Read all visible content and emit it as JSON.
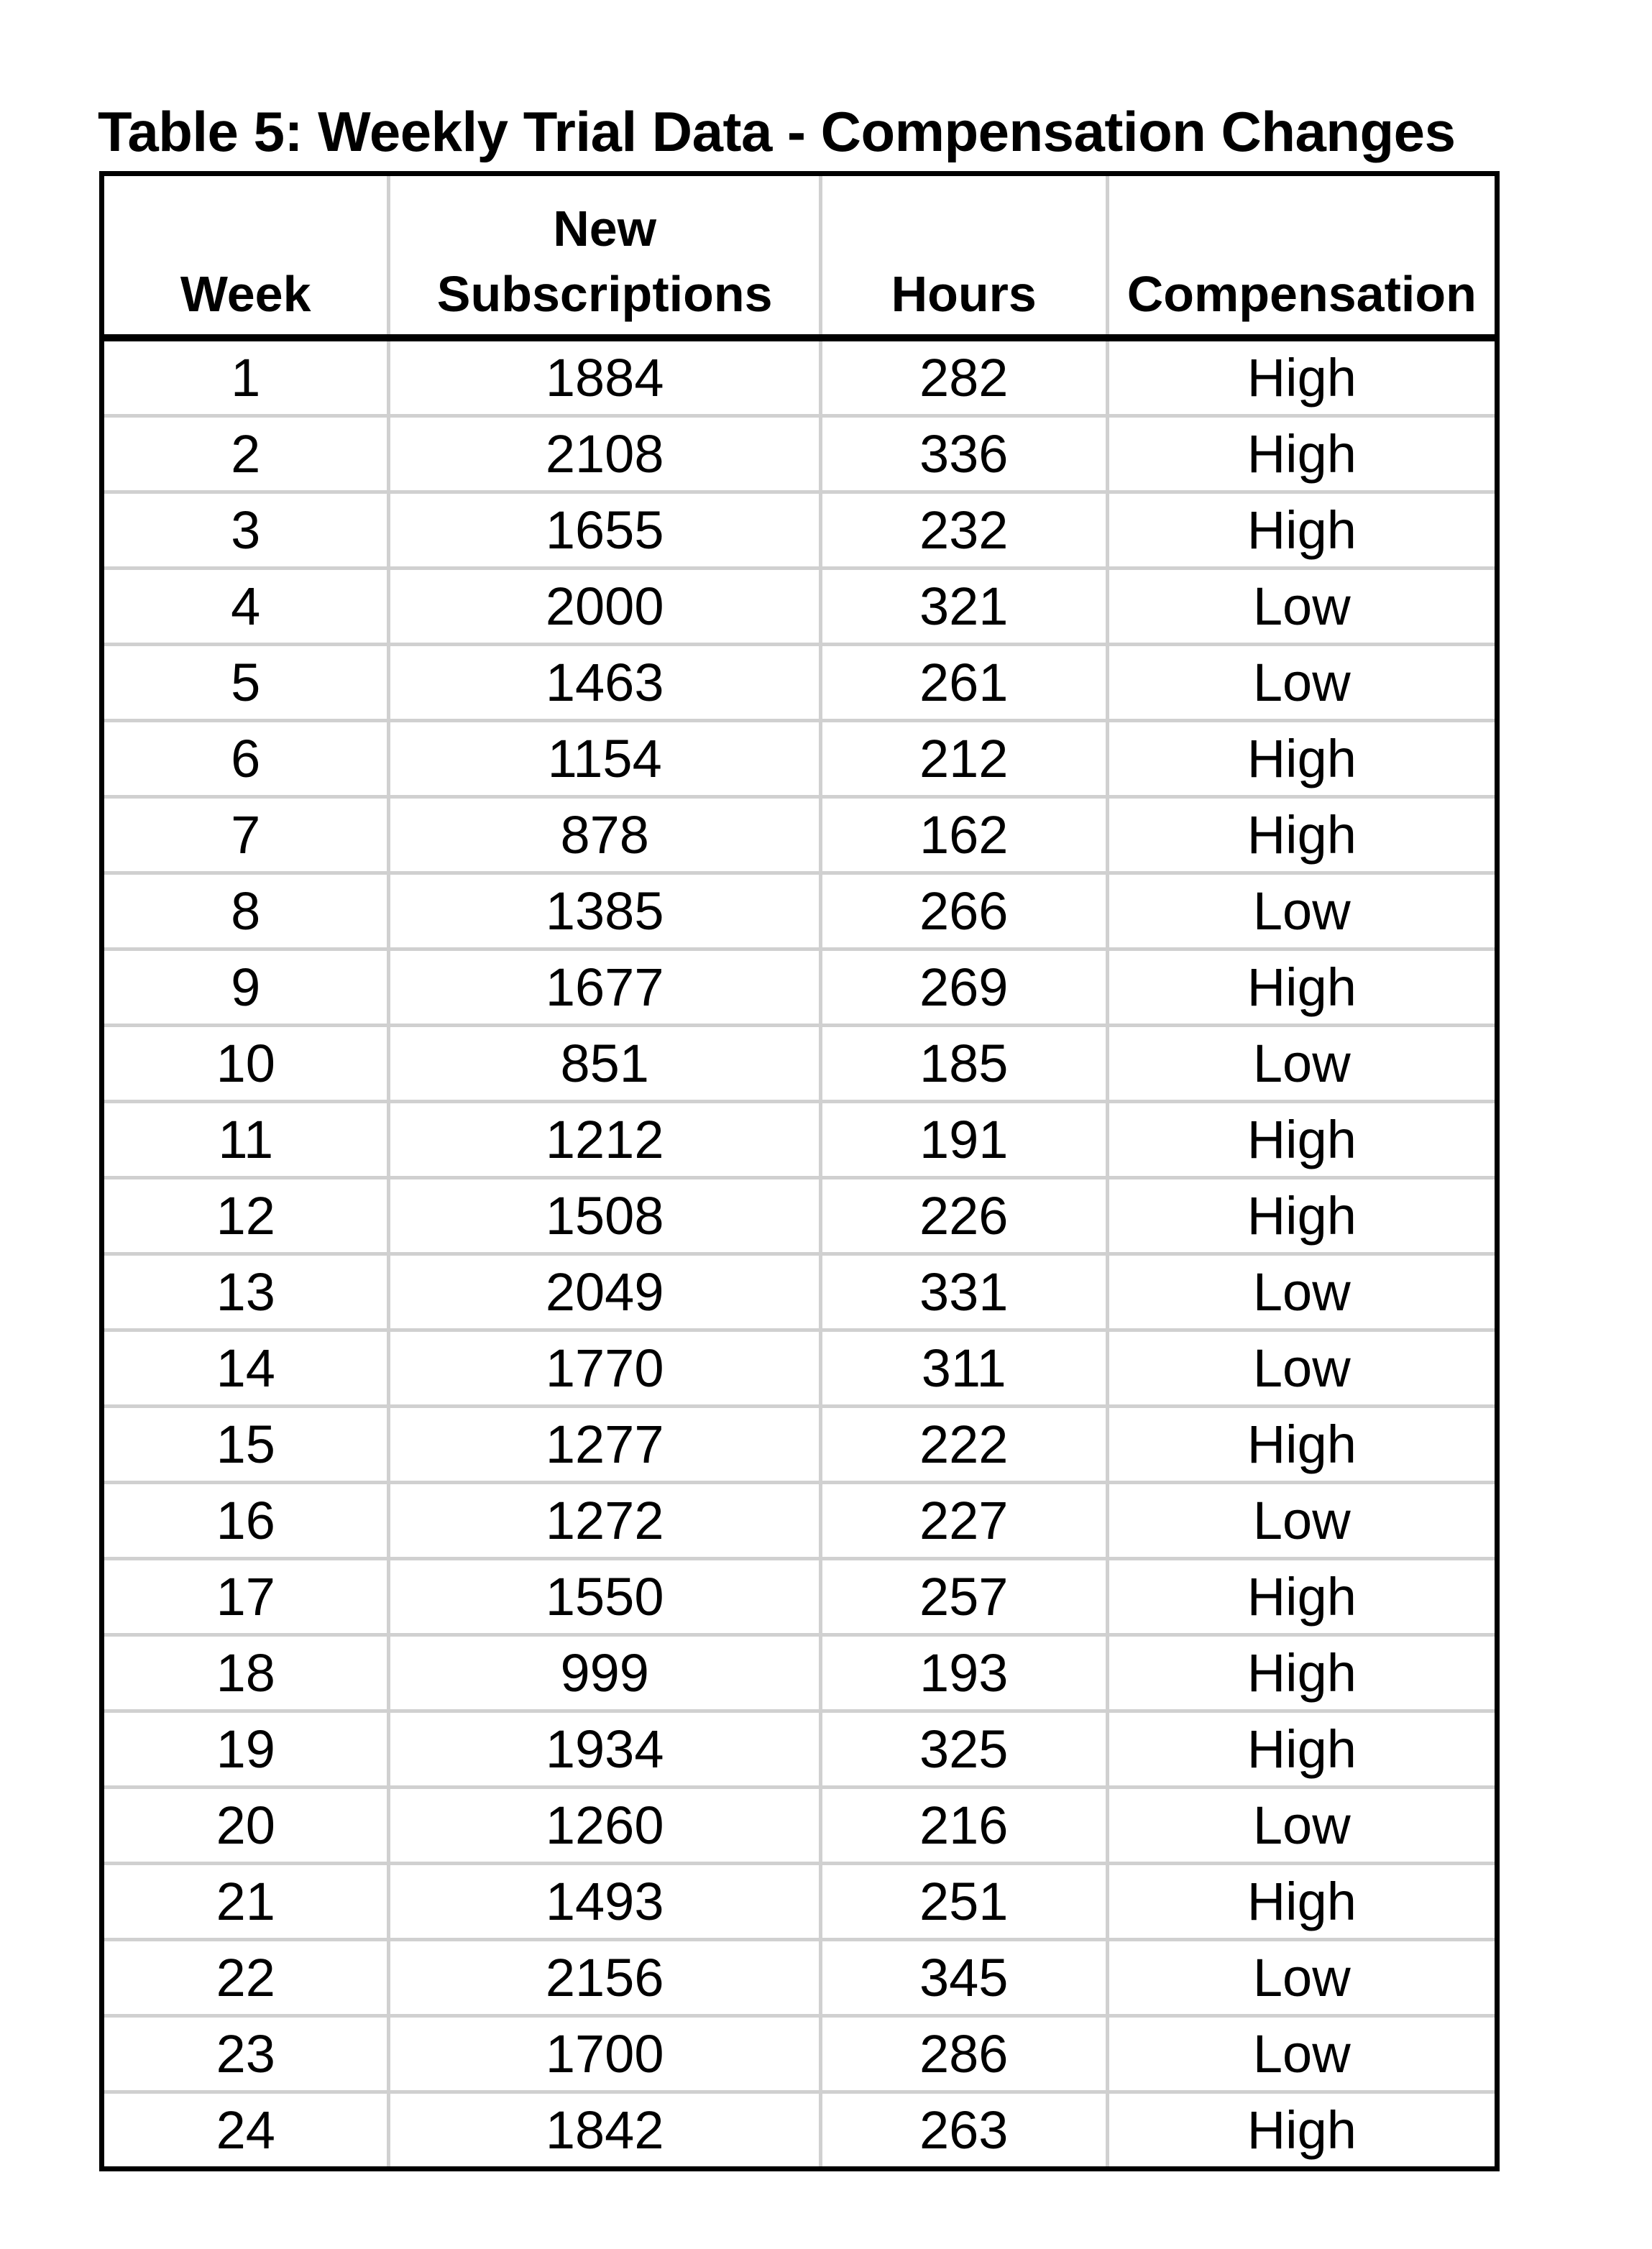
{
  "title": "Table 5: Weekly Trial Data - Compensation Changes",
  "columns": [
    "Week",
    "New Subscriptions",
    "Hours",
    "Compensation"
  ],
  "header_lines": {
    "subscriptions_line1": "New",
    "subscriptions_line2": "Subscriptions"
  },
  "rows": [
    [
      "1",
      "1884",
      "282",
      "High"
    ],
    [
      "2",
      "2108",
      "336",
      "High"
    ],
    [
      "3",
      "1655",
      "232",
      "High"
    ],
    [
      "4",
      "2000",
      "321",
      "Low"
    ],
    [
      "5",
      "1463",
      "261",
      "Low"
    ],
    [
      "6",
      "1154",
      "212",
      "High"
    ],
    [
      "7",
      "878",
      "162",
      "High"
    ],
    [
      "8",
      "1385",
      "266",
      "Low"
    ],
    [
      "9",
      "1677",
      "269",
      "High"
    ],
    [
      "10",
      "851",
      "185",
      "Low"
    ],
    [
      "11",
      "1212",
      "191",
      "High"
    ],
    [
      "12",
      "1508",
      "226",
      "High"
    ],
    [
      "13",
      "2049",
      "331",
      "Low"
    ],
    [
      "14",
      "1770",
      "311",
      "Low"
    ],
    [
      "15",
      "1277",
      "222",
      "High"
    ],
    [
      "16",
      "1272",
      "227",
      "Low"
    ],
    [
      "17",
      "1550",
      "257",
      "High"
    ],
    [
      "18",
      "999",
      "193",
      "High"
    ],
    [
      "19",
      "1934",
      "325",
      "High"
    ],
    [
      "20",
      "1260",
      "216",
      "Low"
    ],
    [
      "21",
      "1493",
      "251",
      "High"
    ],
    [
      "22",
      "2156",
      "345",
      "Low"
    ],
    [
      "23",
      "1700",
      "286",
      "Low"
    ],
    [
      "24",
      "1842",
      "263",
      "High"
    ]
  ]
}
